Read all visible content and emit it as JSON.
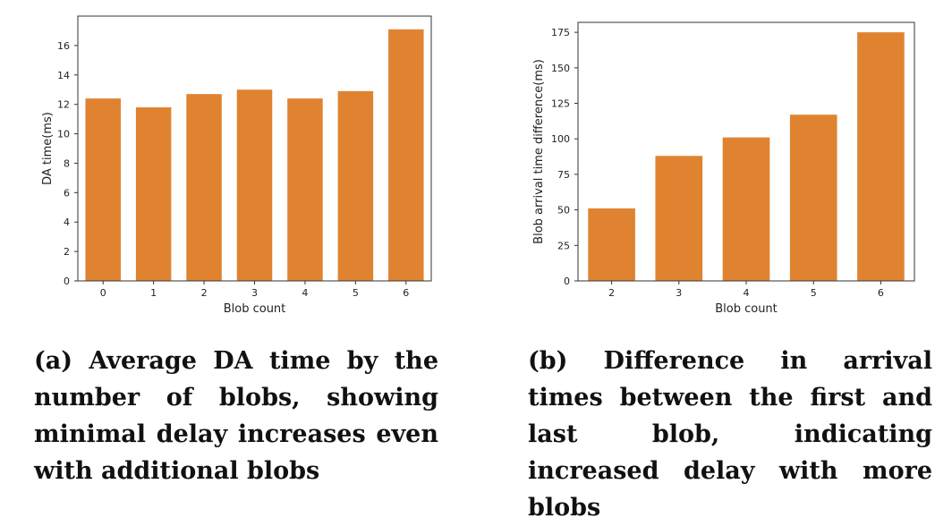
{
  "accent_color": "#e08330",
  "chart_data": [
    {
      "type": "bar",
      "categories": [
        "0",
        "1",
        "2",
        "3",
        "4",
        "5",
        "6"
      ],
      "values": [
        12.4,
        11.8,
        12.7,
        13.0,
        12.4,
        12.9,
        17.1
      ],
      "xlabel": "Blob count",
      "ylabel": "DA time(ms)",
      "ylim": [
        0,
        18
      ],
      "yticks": [
        0,
        2,
        4,
        6,
        8,
        10,
        12,
        14,
        16
      ],
      "grid": false
    },
    {
      "type": "bar",
      "categories": [
        "2",
        "3",
        "4",
        "5",
        "6"
      ],
      "values": [
        51,
        88,
        101,
        117,
        175
      ],
      "xlabel": "Blob count",
      "ylabel": "Blob arrival time difference(ms)",
      "ylim": [
        0,
        182
      ],
      "yticks": [
        0,
        25,
        50,
        75,
        100,
        125,
        150,
        175
      ],
      "grid": false
    }
  ],
  "captions": {
    "a": "(a) Average DA time by the number of blobs, showing minimal delay increases even with additional blobs",
    "b": "(b) Difference in arrival times between the first and last blob, indicating increased delay with more blobs"
  }
}
